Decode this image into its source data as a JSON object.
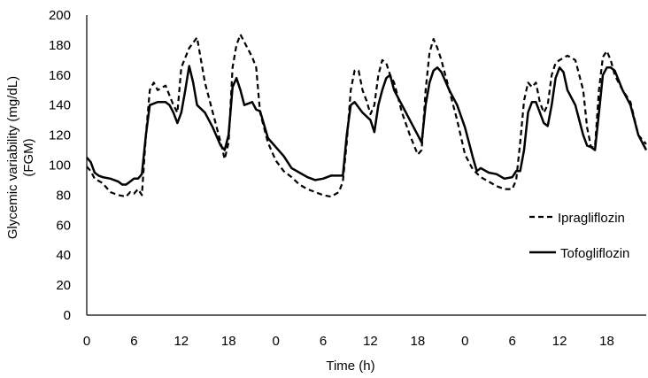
{
  "chart_data": {
    "type": "line",
    "ylabel": "Glycemic variability (mg/dL)\n(FGM)",
    "ylabel_lines": [
      "Glycemic variability (mg/dL)",
      "(FGM)"
    ],
    "xlabel": "Time (h)",
    "ylim": [
      0,
      200
    ],
    "yticks": [
      0,
      20,
      40,
      60,
      80,
      100,
      120,
      140,
      160,
      180,
      200
    ],
    "xlim": [
      0,
      71
    ],
    "xticks": [
      {
        "x": 0,
        "label": "0"
      },
      {
        "x": 6,
        "label": "6"
      },
      {
        "x": 12,
        "label": "12"
      },
      {
        "x": 18,
        "label": "18"
      },
      {
        "x": 24,
        "label": "0"
      },
      {
        "x": 30,
        "label": "6"
      },
      {
        "x": 36,
        "label": "12"
      },
      {
        "x": 42,
        "label": "18"
      },
      {
        "x": 48,
        "label": "0"
      },
      {
        "x": 54,
        "label": "6"
      },
      {
        "x": 60,
        "label": "12"
      },
      {
        "x": 66,
        "label": "18"
      }
    ],
    "grid": false,
    "legend_position": "right",
    "series": [
      {
        "name": "Ipragliflozin",
        "style": "dashed",
        "color": "#000000",
        "points": [
          [
            0,
            99
          ],
          [
            0.5,
            96
          ],
          [
            1,
            91
          ],
          [
            2,
            88
          ],
          [
            3,
            82
          ],
          [
            4,
            80
          ],
          [
            5,
            79
          ],
          [
            5.5,
            82
          ],
          [
            6,
            81
          ],
          [
            6.5,
            84
          ],
          [
            7,
            80
          ],
          [
            7.5,
            120
          ],
          [
            8,
            150
          ],
          [
            8.5,
            155
          ],
          [
            9,
            150
          ],
          [
            10,
            153
          ],
          [
            11,
            140
          ],
          [
            11.5,
            135
          ],
          [
            12,
            165
          ],
          [
            13,
            178
          ],
          [
            14,
            185
          ],
          [
            15,
            155
          ],
          [
            16,
            135
          ],
          [
            17,
            115
          ],
          [
            17.5,
            104
          ],
          [
            18,
            115
          ],
          [
            18.5,
            165
          ],
          [
            19,
            180
          ],
          [
            19.5,
            187
          ],
          [
            20,
            182
          ],
          [
            21,
            172
          ],
          [
            21.5,
            165
          ],
          [
            22,
            135
          ],
          [
            23,
            115
          ],
          [
            24,
            103
          ],
          [
            25,
            96
          ],
          [
            26,
            92
          ],
          [
            27,
            87
          ],
          [
            28,
            84
          ],
          [
            29,
            82
          ],
          [
            30,
            80
          ],
          [
            31,
            79
          ],
          [
            32,
            82
          ],
          [
            32.5,
            89
          ],
          [
            33,
            115
          ],
          [
            33.5,
            150
          ],
          [
            34,
            163
          ],
          [
            34.5,
            163
          ],
          [
            35,
            150
          ],
          [
            35.5,
            143
          ],
          [
            36,
            134
          ],
          [
            36.5,
            140
          ],
          [
            37,
            160
          ],
          [
            37.5,
            170
          ],
          [
            38,
            168
          ],
          [
            38.5,
            160
          ],
          [
            39,
            155
          ],
          [
            40,
            135
          ],
          [
            41,
            120
          ],
          [
            42,
            107
          ],
          [
            42.5,
            110
          ],
          [
            43,
            150
          ],
          [
            43.5,
            175
          ],
          [
            44,
            184
          ],
          [
            44.5,
            178
          ],
          [
            45,
            170
          ],
          [
            46,
            150
          ],
          [
            47,
            130
          ],
          [
            48,
            107
          ],
          [
            49,
            97
          ],
          [
            50,
            92
          ],
          [
            51,
            89
          ],
          [
            52,
            86
          ],
          [
            53,
            84
          ],
          [
            54,
            84
          ],
          [
            54.5,
            90
          ],
          [
            55,
            115
          ],
          [
            55.5,
            143
          ],
          [
            56,
            155
          ],
          [
            56.5,
            152
          ],
          [
            57,
            155
          ],
          [
            57.5,
            142
          ],
          [
            58,
            135
          ],
          [
            58.5,
            140
          ],
          [
            59,
            160
          ],
          [
            59.5,
            168
          ],
          [
            60,
            170
          ],
          [
            61,
            173
          ],
          [
            62,
            170
          ],
          [
            63,
            150
          ],
          [
            63.5,
            125
          ],
          [
            64,
            112
          ],
          [
            64.5,
            112
          ],
          [
            65,
            150
          ],
          [
            65.5,
            172
          ],
          [
            66,
            176
          ],
          [
            66.5,
            170
          ],
          [
            67,
            160
          ],
          [
            68,
            150
          ],
          [
            69,
            142
          ],
          [
            70,
            120
          ],
          [
            71,
            114
          ]
        ]
      },
      {
        "name": "Tofogliflozin",
        "style": "solid",
        "color": "#000000",
        "points": [
          [
            0,
            105
          ],
          [
            0.5,
            102
          ],
          [
            1,
            95
          ],
          [
            1.5,
            93
          ],
          [
            2,
            92
          ],
          [
            3,
            91
          ],
          [
            4,
            89
          ],
          [
            4.5,
            87
          ],
          [
            5,
            87
          ],
          [
            5.5,
            89
          ],
          [
            6,
            91
          ],
          [
            6.5,
            91
          ],
          [
            7,
            94
          ],
          [
            7.5,
            120
          ],
          [
            8,
            140
          ],
          [
            9,
            142
          ],
          [
            10,
            142
          ],
          [
            10.5,
            140
          ],
          [
            11,
            135
          ],
          [
            11.5,
            128
          ],
          [
            12,
            135
          ],
          [
            12.5,
            150
          ],
          [
            13,
            166
          ],
          [
            13.5,
            155
          ],
          [
            14,
            140
          ],
          [
            15,
            135
          ],
          [
            16,
            125
          ],
          [
            17,
            113
          ],
          [
            17.5,
            110
          ],
          [
            18,
            120
          ],
          [
            18.5,
            152
          ],
          [
            19,
            158
          ],
          [
            19.5,
            150
          ],
          [
            20,
            140
          ],
          [
            21,
            142
          ],
          [
            21.5,
            137
          ],
          [
            22,
            136
          ],
          [
            23,
            118
          ],
          [
            24,
            112
          ],
          [
            25,
            106
          ],
          [
            26,
            98
          ],
          [
            27,
            95
          ],
          [
            28,
            92
          ],
          [
            29,
            90
          ],
          [
            30,
            91
          ],
          [
            31,
            93
          ],
          [
            32,
            93
          ],
          [
            32.5,
            93
          ],
          [
            33,
            120
          ],
          [
            33.5,
            140
          ],
          [
            34,
            142
          ],
          [
            35,
            135
          ],
          [
            36,
            130
          ],
          [
            36.5,
            122
          ],
          [
            37,
            140
          ],
          [
            37.5,
            150
          ],
          [
            38,
            158
          ],
          [
            38.5,
            160
          ],
          [
            39,
            150
          ],
          [
            40,
            140
          ],
          [
            41,
            130
          ],
          [
            42,
            120
          ],
          [
            42.5,
            115
          ],
          [
            43,
            140
          ],
          [
            43.5,
            155
          ],
          [
            44,
            163
          ],
          [
            44.5,
            165
          ],
          [
            45,
            162
          ],
          [
            46,
            150
          ],
          [
            47,
            140
          ],
          [
            48,
            125
          ],
          [
            49,
            105
          ],
          [
            49.5,
            96
          ],
          [
            50,
            98
          ],
          [
            51,
            95
          ],
          [
            52,
            94
          ],
          [
            53,
            91
          ],
          [
            54,
            92
          ],
          [
            54.5,
            96
          ],
          [
            55,
            96
          ],
          [
            55.5,
            110
          ],
          [
            56,
            135
          ],
          [
            56.5,
            142
          ],
          [
            57,
            142
          ],
          [
            58,
            128
          ],
          [
            58.5,
            126
          ],
          [
            59,
            140
          ],
          [
            59.5,
            158
          ],
          [
            60,
            165
          ],
          [
            60.5,
            162
          ],
          [
            61,
            150
          ],
          [
            62,
            140
          ],
          [
            63,
            120
          ],
          [
            63.5,
            113
          ],
          [
            64,
            112
          ],
          [
            64.5,
            110
          ],
          [
            65,
            135
          ],
          [
            65.5,
            160
          ],
          [
            66,
            165
          ],
          [
            66.5,
            165
          ],
          [
            67,
            163
          ],
          [
            68,
            150
          ],
          [
            69,
            140
          ],
          [
            70,
            120
          ],
          [
            71,
            110
          ]
        ]
      }
    ]
  }
}
